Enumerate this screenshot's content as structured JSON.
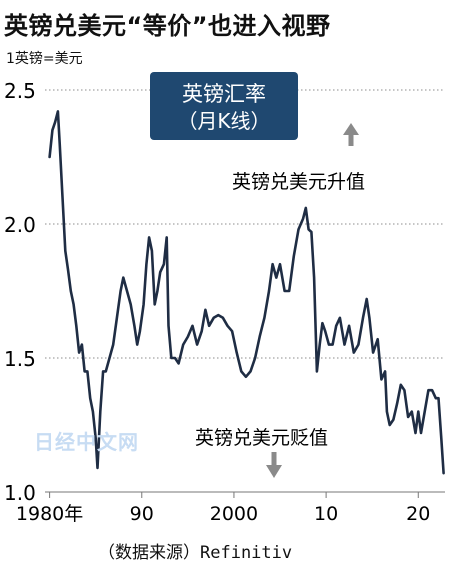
{
  "title": "英镑兑美元“等价”也进入视野",
  "unit_label": "1英镑=美元",
  "source_prefix": "（数据来源）",
  "source_name": "Refinitiv",
  "watermark": "日经中文网",
  "colors": {
    "line": "#1f2d44",
    "box": "#1f4870",
    "box_text": "#ffffff",
    "arrow": "#8a8a8a"
  },
  "chart_data": {
    "type": "line",
    "title": "英镑汇率",
    "subtitle": "（月K线）",
    "yunit": "1英镑=美元",
    "ylim": [
      1.0,
      2.5
    ],
    "yticks": [
      "1.0",
      "1.5",
      "2.0",
      "2.5"
    ],
    "xlim": [
      1979.5,
      2022.9
    ],
    "xticks": [
      {
        "x": 1980,
        "label": "1980年"
      },
      {
        "x": 1990,
        "label": "90"
      },
      {
        "x": 2000,
        "label": "2000"
      },
      {
        "x": 2010,
        "label": "10"
      },
      {
        "x": 2020,
        "label": "20"
      }
    ],
    "grid": true,
    "annotations": {
      "up": "英镑兑美元升值",
      "down": "英镑兑美元贬值"
    },
    "series": [
      {
        "x": [
          1980.0,
          1980.3,
          1980.6,
          1980.9,
          1981.1,
          1981.4,
          1981.7,
          1982.0,
          1982.3,
          1982.6,
          1982.9,
          1983.2,
          1983.5,
          1983.8,
          1984.1,
          1984.4,
          1984.7,
          1985.0,
          1985.2,
          1985.5,
          1985.8,
          1986.1,
          1986.5,
          1986.9,
          1987.3,
          1987.7,
          1988.0,
          1988.4,
          1988.8,
          1989.2,
          1989.5,
          1989.8,
          1990.2,
          1990.5,
          1990.8,
          1991.1,
          1991.4,
          1991.7,
          1992.0,
          1992.4,
          1992.7,
          1992.9,
          1993.2,
          1993.6,
          1994.0,
          1994.5,
          1995.0,
          1995.5,
          1996.0,
          1996.5,
          1996.9,
          1997.3,
          1997.8,
          1998.3,
          1998.8,
          1999.3,
          1999.8,
          2000.3,
          2000.8,
          2001.3,
          2001.8,
          2002.3,
          2002.8,
          2003.3,
          2003.8,
          2004.2,
          2004.6,
          2005.0,
          2005.5,
          2006.0,
          2006.5,
          2007.0,
          2007.5,
          2007.8,
          2008.1,
          2008.4,
          2008.7,
          2009.0,
          2009.3,
          2009.6,
          2009.9,
          2010.3,
          2010.7,
          2011.1,
          2011.5,
          2012.0,
          2012.5,
          2013.0,
          2013.5,
          2014.0,
          2014.4,
          2014.7,
          2015.1,
          2015.6,
          2016.0,
          2016.4,
          2016.6,
          2016.9,
          2017.3,
          2017.7,
          2018.1,
          2018.5,
          2018.9,
          2019.3,
          2019.7,
          2020.0,
          2020.3,
          2020.7,
          2021.1,
          2021.5,
          2021.9,
          2022.2,
          2022.5,
          2022.75
        ],
        "y": [
          2.25,
          2.35,
          2.38,
          2.42,
          2.3,
          2.1,
          1.9,
          1.83,
          1.75,
          1.7,
          1.62,
          1.52,
          1.55,
          1.45,
          1.45,
          1.35,
          1.3,
          1.2,
          1.09,
          1.3,
          1.45,
          1.45,
          1.5,
          1.55,
          1.65,
          1.75,
          1.8,
          1.75,
          1.7,
          1.62,
          1.55,
          1.6,
          1.7,
          1.85,
          1.95,
          1.9,
          1.7,
          1.75,
          1.82,
          1.85,
          1.95,
          1.62,
          1.5,
          1.5,
          1.48,
          1.55,
          1.58,
          1.62,
          1.55,
          1.6,
          1.68,
          1.62,
          1.65,
          1.66,
          1.65,
          1.62,
          1.6,
          1.52,
          1.45,
          1.43,
          1.45,
          1.5,
          1.58,
          1.65,
          1.75,
          1.85,
          1.8,
          1.85,
          1.75,
          1.75,
          1.88,
          1.98,
          2.02,
          2.06,
          1.98,
          1.97,
          1.8,
          1.45,
          1.55,
          1.63,
          1.6,
          1.55,
          1.55,
          1.62,
          1.65,
          1.55,
          1.62,
          1.52,
          1.55,
          1.65,
          1.72,
          1.65,
          1.52,
          1.57,
          1.42,
          1.45,
          1.3,
          1.25,
          1.27,
          1.33,
          1.4,
          1.38,
          1.28,
          1.3,
          1.22,
          1.3,
          1.22,
          1.3,
          1.38,
          1.38,
          1.35,
          1.35,
          1.2,
          1.07
        ]
      }
    ]
  }
}
